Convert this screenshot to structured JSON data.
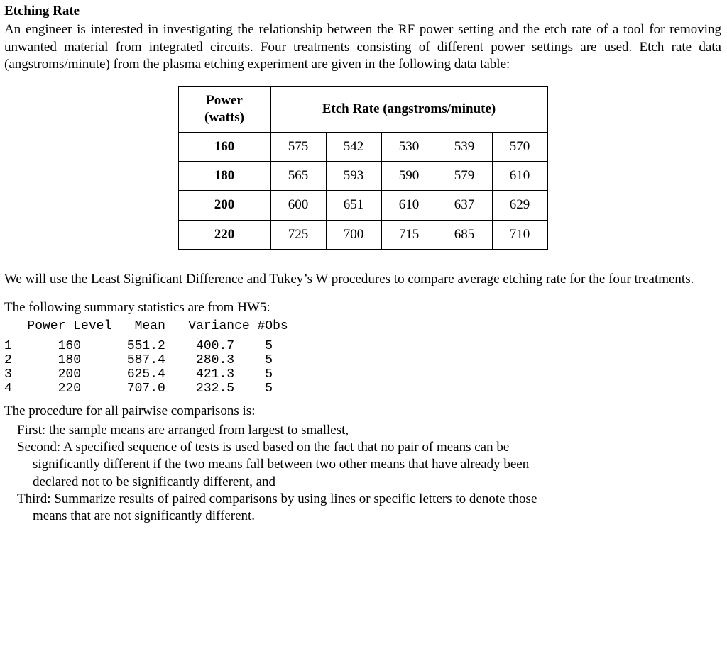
{
  "title": "Etching Rate",
  "intro": "An engineer is interested in investigating the relationship between the RF power setting and the etch rate of a tool for removing unwanted material from integrated circuits.  Four treatments consisting of different power settings are used. Etch rate data (angstroms/minute) from the plasma etching experiment are given in the following data table:",
  "table": {
    "power_header_line1": "Power",
    "power_header_line2": "(watts)",
    "rate_header": "Etch Rate (angstroms/minute)",
    "rows": [
      {
        "power": "160",
        "v": [
          "575",
          "542",
          "530",
          "539",
          "570"
        ]
      },
      {
        "power": "180",
        "v": [
          "565",
          "593",
          "590",
          "579",
          "610"
        ]
      },
      {
        "power": "200",
        "v": [
          "600",
          "651",
          "610",
          "637",
          "629"
        ]
      },
      {
        "power": "220",
        "v": [
          "725",
          "700",
          "715",
          "685",
          "710"
        ]
      }
    ],
    "col_width_power": 130,
    "col_width_rate": 78,
    "border_color": "#000000",
    "font_size": 19
  },
  "mid1": "We will use the Least Significant Difference and Tukey’s W procedures to compare average etching rate for the four treatments.",
  "mid2": "The following summary statistics are from HW5:",
  "summary": {
    "header_parts": {
      "pre": "   Power ",
      "u1": "Leve",
      "mid1": "l   ",
      "u2": "Mea",
      "mid2": "n   Variance ",
      "u3": "#Ob",
      "post": "s"
    },
    "rows": [
      {
        "n": "1",
        "power": "160",
        "mean": "551.2",
        "var": "400.7",
        "obs": "5"
      },
      {
        "n": "2",
        "power": "180",
        "mean": "587.4",
        "var": "280.3",
        "obs": "5"
      },
      {
        "n": "3",
        "power": "200",
        "mean": "625.4",
        "var": "421.3",
        "obs": "5"
      },
      {
        "n": "4",
        "power": "220",
        "mean": "707.0",
        "var": "232.5",
        "obs": "5"
      }
    ],
    "font_family": "Courier New",
    "font_size": 18
  },
  "procedure": {
    "lead": "The procedure for all pairwise comparisons is:",
    "first": "First: the sample means are arranged from largest to smallest,",
    "second_l1": "Second: A specified sequence of tests is used based on the fact that no pair of means can be",
    "second_l2": "significantly different if the two means fall between two other means that have already been",
    "second_l3": "declared not to be significantly different, and",
    "third_l1": "Third: Summarize results of paired comparisons by using lines or specific letters to denote those",
    "third_l2": "means that are not significantly different."
  },
  "colors": {
    "background": "#ffffff",
    "text": "#000000"
  }
}
